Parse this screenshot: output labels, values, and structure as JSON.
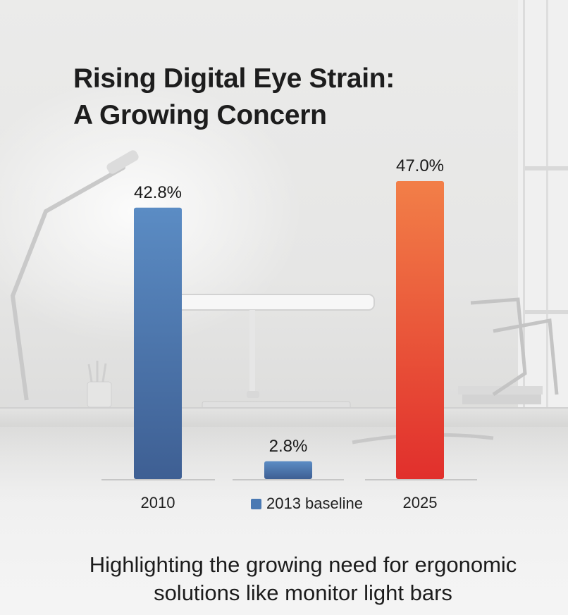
{
  "title": {
    "line1": "Rising Digital Eye Strain:",
    "line2": "A Growing Concern"
  },
  "caption": {
    "line1": "Highlighting the growing need for ergonomic",
    "line2": "solutions like monitor light bars"
  },
  "legend": {
    "label": "2013 baseline",
    "color": "#4a79b3"
  },
  "chart_data": {
    "type": "bar",
    "categories": [
      "2010",
      "2013 baseline",
      "2025"
    ],
    "values": [
      42.8,
      2.8,
      47.0
    ],
    "value_labels": [
      "42.8%",
      "2.8%",
      "47.0%"
    ],
    "x_tick_labels": [
      "2010",
      "",
      "2025"
    ],
    "colors": [
      "#4a79b3",
      "#4a79b3",
      "#ef4a35"
    ],
    "title": "Rising Digital Eye Strain: A Growing Concern",
    "xlabel": "",
    "ylabel": "",
    "grid": false,
    "legend_position": "bottom"
  }
}
